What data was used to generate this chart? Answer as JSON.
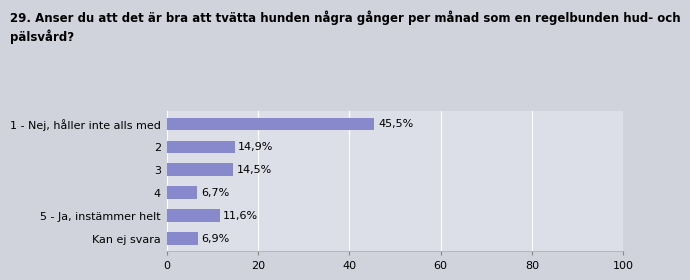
{
  "title": "29. Anser du att det är bra att tvätta hunden några gånger per månad som en regelbunden hud- och\npälsvård?",
  "categories": [
    "1 - Nej, håller inte alls med",
    "2",
    "3",
    "4",
    "5 - Ja, instämmer helt",
    "Kan ej svara"
  ],
  "values": [
    45.5,
    14.9,
    14.5,
    6.7,
    11.6,
    6.9
  ],
  "labels": [
    "45,5%",
    "14,9%",
    "14,5%",
    "6,7%",
    "11,6%",
    "6,9%"
  ],
  "bar_color": "#8888cc",
  "bg_color": "#d0d3dc",
  "plot_bg_color": "#dcdfe8",
  "xlim": [
    0,
    100
  ],
  "xticks": [
    0,
    20,
    40,
    60,
    80,
    100
  ],
  "title_fontsize": 8.5,
  "label_fontsize": 8,
  "value_fontsize": 8
}
